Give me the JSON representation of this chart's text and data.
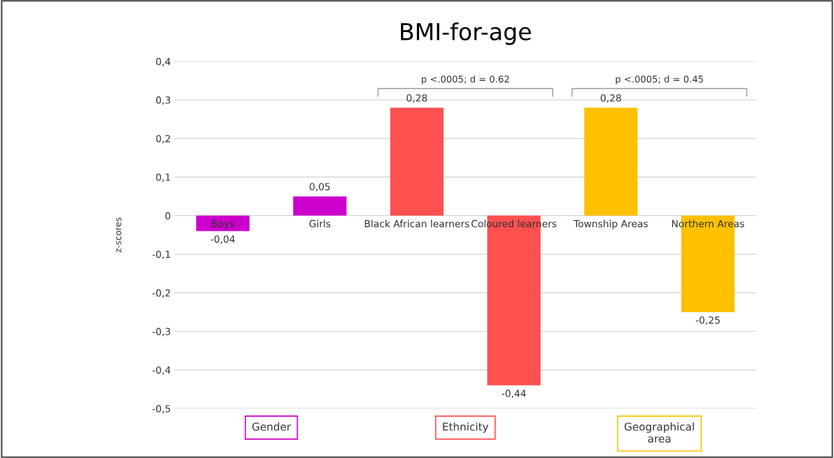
{
  "chart_data": {
    "type": "bar",
    "title": "BMI-for-age",
    "ylabel": "z-scores",
    "categories": [
      "Boys",
      "Girls",
      "Black African learners",
      "Coloured learners",
      "Township Areas",
      "Northern Areas"
    ],
    "stacked": true,
    "series": [
      {
        "name": "Gender",
        "color": "#cc00cc",
        "values": [
          -0.04,
          0.05,
          null,
          null,
          null,
          null
        ],
        "value_labels": [
          "-0,04",
          "0,05",
          null,
          null,
          null,
          null
        ]
      },
      {
        "name": "Ethnicity",
        "color": "#ff5050",
        "values": [
          null,
          null,
          0.28,
          -0.44,
          null,
          null
        ],
        "value_labels": [
          null,
          null,
          "0,28",
          "-0,44",
          null,
          null
        ]
      },
      {
        "name": "Geographical area",
        "color": "#ffc000",
        "values": [
          null,
          null,
          null,
          null,
          0.28,
          -0.25
        ],
        "value_labels": [
          null,
          null,
          null,
          null,
          "0,28",
          "-0,25"
        ]
      }
    ],
    "ylim": [
      -0.5,
      0.4
    ],
    "yticks": [
      {
        "value": -0.5,
        "label": "-0,5"
      },
      {
        "value": -0.4,
        "label": "-0,4"
      },
      {
        "value": -0.3,
        "label": "-0,3"
      },
      {
        "value": -0.2,
        "label": "-0,2"
      },
      {
        "value": -0.1,
        "label": "-0,1"
      },
      0,
      {
        "value": 0.1,
        "label": "0,1"
      },
      {
        "value": 0.2,
        "label": "0,2"
      },
      {
        "value": 0.3,
        "label": "0,3"
      },
      {
        "value": 0.4,
        "label": "0,4"
      }
    ],
    "grid": "y",
    "legend": "bottom",
    "annotations": [
      "p <.0005; d = 0.62",
      "p <.0005; d = 0.45"
    ]
  }
}
